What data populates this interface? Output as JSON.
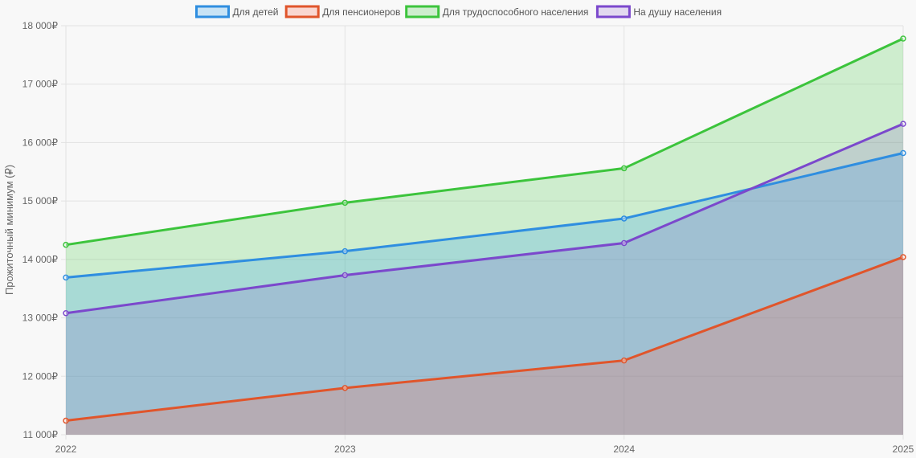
{
  "chart_data": {
    "type": "area",
    "x": [
      "2022",
      "2023",
      "2024",
      "2025"
    ],
    "series": [
      {
        "name": "Для детей",
        "values": [
          13690,
          14140,
          14700,
          15820
        ],
        "color": "#2f8ee0",
        "fill": "rgba(54,162,235,0.25)"
      },
      {
        "name": "Для пенсионеров",
        "values": [
          11240,
          11800,
          12270,
          14040
        ],
        "color": "#e0552b",
        "fill": "rgba(255,99,71,0.22)"
      },
      {
        "name": "Для трудоспособного населения",
        "values": [
          14250,
          14970,
          15560,
          17780
        ],
        "color": "#3cc43c",
        "fill": "rgba(60,200,60,0.22)"
      },
      {
        "name": "На душу населения",
        "values": [
          13080,
          13730,
          14280,
          16320
        ],
        "color": "#7b48cc",
        "fill": "rgba(130,80,200,0.18)"
      }
    ],
    "ylabel": "Прожиточный минимум (₽)",
    "ylim": [
      11000,
      18000
    ],
    "yticks": [
      "11 000₽",
      "12 000₽",
      "13 000₽",
      "14 000₽",
      "15 000₽",
      "16 000₽",
      "17 000₽",
      "18 000₽"
    ],
    "grid": true,
    "legend_position": "top"
  }
}
